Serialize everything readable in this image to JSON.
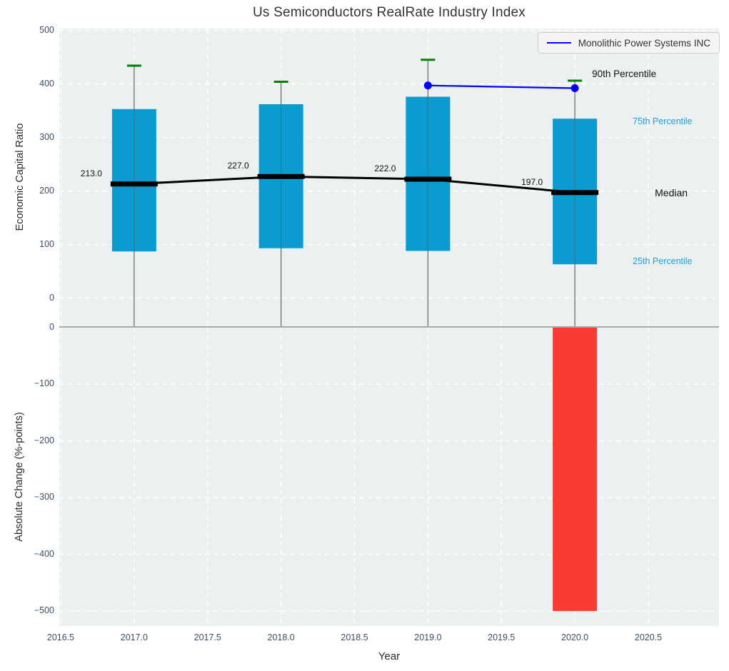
{
  "figure": {
    "title": "Us Semiconductors RealRate Industry Index"
  },
  "legend": {
    "label": "Monolithic Power Systems INC"
  },
  "axes": {
    "x": {
      "label": "Year",
      "tick_labels": [
        "2016.5",
        "2017.0",
        "2017.5",
        "2018.0",
        "2018.5",
        "2019.0",
        "2019.5",
        "2020.0",
        "2020.5"
      ],
      "tick_values": [
        2016.5,
        2017.0,
        2017.5,
        2018.0,
        2018.5,
        2019.0,
        2019.5,
        2020.0,
        2020.5
      ]
    },
    "y_top": {
      "label": "Economic Capital Ratio",
      "tick_labels": [
        "0",
        "100",
        "200",
        "300",
        "400",
        "500"
      ],
      "tick_values": [
        0,
        100,
        200,
        300,
        400,
        500
      ],
      "lim": [
        -55,
        503
      ]
    },
    "y_bottom": {
      "label": "Absolute Change (%-points)",
      "tick_labels": [
        "0",
        "−100",
        "−200",
        "−300",
        "−400",
        "−500"
      ],
      "tick_values": [
        0,
        -100,
        -200,
        -300,
        -400,
        -500
      ],
      "lim": [
        -528,
        0
      ]
    }
  },
  "annotations": {
    "p90_label": "90th Percentile",
    "p75_label": "75th Percentile",
    "median_label": "Median",
    "p25_label": "25th Percentile"
  },
  "colors": {
    "box": "#0a9bd1",
    "change_negative": "#f93b31",
    "p90_marker": "#008000",
    "company_line": "#0000ff",
    "median_line": "#000000",
    "side_label_blue": "#1d9fda",
    "tick_text": "#3e4d66",
    "panel_bg": "#edf0f1",
    "grid": "#ffffff",
    "whisker": "#666666",
    "boundary": "#aaaaaa"
  },
  "chart_data": {
    "type": "bar",
    "title": "Us Semiconductors RealRate Industry Index",
    "xlabel": "Year",
    "subplots": [
      {
        "name": "industry-box-distribution",
        "ylabel": "Economic Capital Ratio",
        "ylim": [
          -55,
          503
        ],
        "x": [
          2017,
          2018,
          2019,
          2020
        ],
        "p90": [
          434,
          404,
          445,
          406
        ],
        "p75": [
          353,
          362,
          376,
          335
        ],
        "median": [
          213,
          227,
          222,
          197
        ],
        "p25": [
          87,
          93,
          88,
          63
        ],
        "median_labels": [
          "213.0",
          "227.0",
          "222.0",
          "197.0"
        ],
        "company_series": {
          "name": "Monolithic Power Systems INC",
          "x": [
            2019,
            2020
          ],
          "y": [
            397,
            392
          ]
        }
      },
      {
        "name": "absolute-change",
        "ylabel": "Absolute Change (%-points)",
        "ylim": [
          -528,
          0
        ],
        "x": [
          2020
        ],
        "values": [
          -500
        ]
      }
    ],
    "legend_position": "top-right",
    "grid": true
  }
}
